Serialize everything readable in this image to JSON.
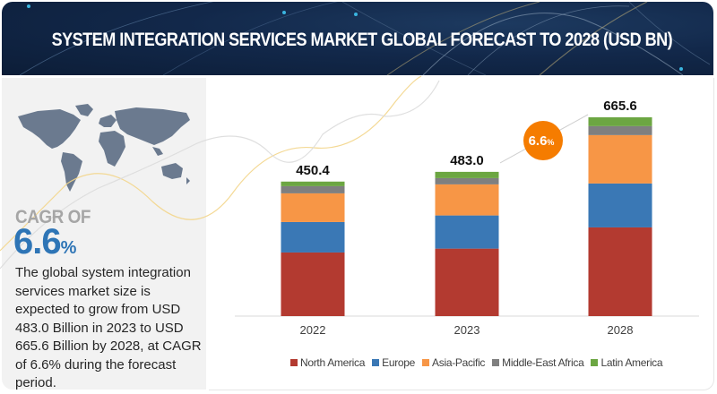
{
  "header": {
    "title": "SYSTEM INTEGRATION SERVICES MARKET GLOBAL FORECAST TO 2028 (USD BN)"
  },
  "left_panel": {
    "icon": "world-map-icon",
    "cagr_label": "CAGR OF",
    "cagr_number": "6.6",
    "cagr_unit": "%",
    "description": "The global system integration services market size is expected to grow from USD 483.0 Billion in 2023 to USD 665.6 Billion by 2028, at CAGR of 6.6% during the forecast period."
  },
  "chart_data": {
    "type": "bar",
    "stacked": true,
    "title": "System Integration Services Market Global Forecast to 2028 (USD BN)",
    "xlabel": "",
    "ylabel": "",
    "categories": [
      "2022",
      "2023",
      "2028"
    ],
    "totals": [
      450.4,
      483.0,
      665.6
    ],
    "total_labels": [
      "450.4",
      "483.0",
      "665.6"
    ],
    "series": [
      {
        "name": "North America",
        "color": "#b33a30",
        "values": [
          213,
          226,
          297
        ]
      },
      {
        "name": "Europe",
        "color": "#3a78b5",
        "values": [
          102,
          111,
          147
        ]
      },
      {
        "name": "Asia-Pacific",
        "color": "#f79646",
        "values": [
          96,
          104,
          162
        ]
      },
      {
        "name": "Middle-East Africa",
        "color": "#7f7f7f",
        "values": [
          24,
          21,
          30
        ]
      },
      {
        "name": "Latin America",
        "color": "#6ca642",
        "values": [
          15.4,
          21,
          29.6
        ]
      }
    ],
    "ylim": [
      0,
      665.6
    ],
    "grid": false,
    "legend": "bottom",
    "annotation": {
      "text": "6.6",
      "unit": "%",
      "color": "#f57c00",
      "meaning": "CAGR 2023-2028"
    }
  }
}
